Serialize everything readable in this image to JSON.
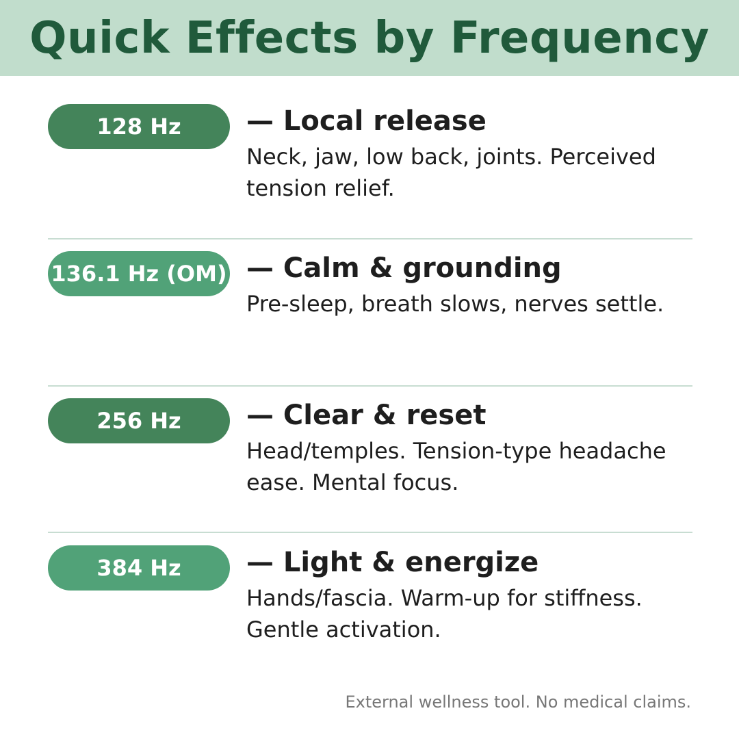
{
  "title": "Quick Effects by Frequency",
  "colors": {
    "header_bg": "#c1ddcc",
    "title": "#205a3b",
    "pill_dark": "#44845a",
    "pill_light": "#51a278"
  },
  "items": [
    {
      "freq": "128 Hz",
      "title": "— Local release",
      "desc": "Neck, jaw, low back, joints. Perceived tension relief."
    },
    {
      "freq": "136.1 Hz (OM)",
      "title": "— Calm & grounding",
      "desc": "Pre-sleep, breath slows, nerves settle."
    },
    {
      "freq": "256 Hz",
      "title": "— Clear & reset",
      "desc": "Head/temples. Tension-type headache ease. Mental focus."
    },
    {
      "freq": "384 Hz",
      "title": "— Light & energize",
      "desc": "Hands/fascia. Warm-up for stiffness. Gentle activation."
    }
  ],
  "footer": "External wellness tool. No medical claims."
}
